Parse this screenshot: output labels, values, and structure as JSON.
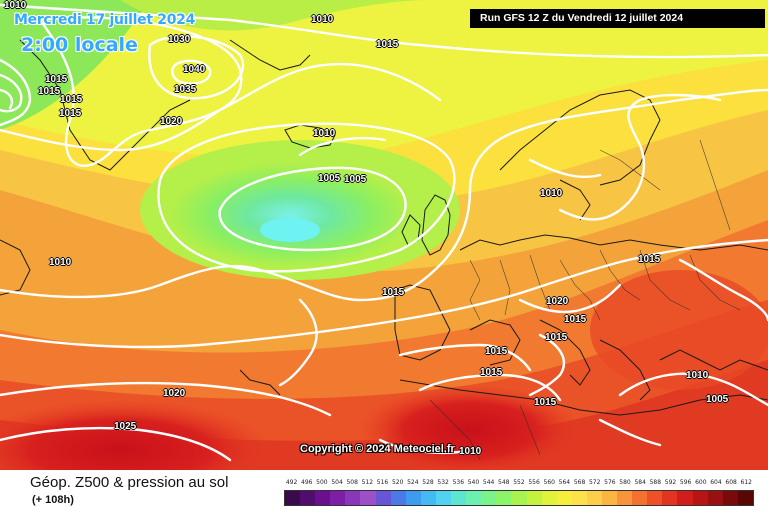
{
  "header": {
    "date": "Mercredi 17 juillet 2024",
    "time": "2:00 locale",
    "run": "Run GFS 12 Z du Vendredi 12 juillet 2024"
  },
  "copyright": "Copyright © 2024 Meteociel.fr",
  "footer": {
    "title": "Géop. Z500 & pression au sol",
    "subtitle": "(+ 108h)"
  },
  "isobar_labels": [
    "1010",
    "1010",
    "1030",
    "1015",
    "1040",
    "1015",
    "1015",
    "1035",
    "1015",
    "1015",
    "1020",
    "1010",
    "1005",
    "1005",
    "1010",
    "1010",
    "1015",
    "1015",
    "1020",
    "1015",
    "1015",
    "1015",
    "1015",
    "1010",
    "1020",
    "1015",
    "1005",
    "1025",
    "1010"
  ],
  "scale": {
    "labels": [
      "492",
      "496",
      "500",
      "504",
      "508",
      "512",
      "516",
      "520",
      "524",
      "528",
      "532",
      "536",
      "540",
      "544",
      "548",
      "552",
      "556",
      "560",
      "564",
      "568",
      "572",
      "576",
      "580",
      "584",
      "588",
      "592",
      "596",
      "600",
      "604",
      "608",
      "612"
    ],
    "colors": [
      "#3a0a4a",
      "#520b6e",
      "#6a0f8e",
      "#7d1fa6",
      "#8a36b8",
      "#9b4fc8",
      "#6656d6",
      "#4d78e8",
      "#3f9bf0",
      "#45b9f5",
      "#52d2f2",
      "#5ce6d2",
      "#6cf0b0",
      "#7af38a",
      "#8cf46a",
      "#a8f350",
      "#c4f240",
      "#e0f23a",
      "#f7ee3c",
      "#fde04a",
      "#fccf4a",
      "#fbb540",
      "#f8953a",
      "#f47230",
      "#ee5128",
      "#e33420",
      "#d21e1a",
      "#b81414",
      "#991010",
      "#7a0a0a",
      "#5a0606"
    ]
  }
}
